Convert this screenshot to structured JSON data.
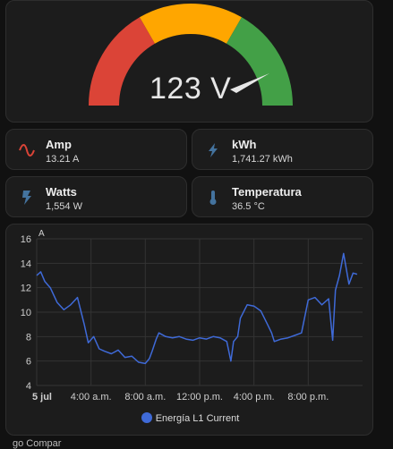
{
  "gauge": {
    "value_text": "123 V",
    "value": 123,
    "colors": {
      "red": "#db4437",
      "yellow": "#ffa600",
      "green": "#43a047",
      "needle": "#e6e6e6"
    }
  },
  "tiles": {
    "amp": {
      "name": "Amp",
      "state": "13.21 A",
      "icon": "sine-wave-icon",
      "icon_color": "#db4437"
    },
    "kwh": {
      "name": "kWh",
      "state": "1,741.27 kWh",
      "icon": "lightning-bolt-icon",
      "icon_color": "#44739e"
    },
    "watt": {
      "name": "Watts",
      "state": "1,554 W",
      "icon": "flash-icon",
      "icon_color": "#44739e"
    },
    "temp": {
      "name": "Temperatura",
      "state": "36.5 °C",
      "icon": "thermometer-icon",
      "icon_color": "#44739e"
    }
  },
  "chart_data": {
    "type": "line",
    "unit_label": "A",
    "y_ticks": [
      4,
      6,
      8,
      10,
      12,
      14,
      16
    ],
    "ylim": [
      4,
      16
    ],
    "x_ticks": [
      "5 jul",
      "4:00 a.m.",
      "8:00 a.m.",
      "12:00 p.m.",
      "4:00 p.m.",
      "8:00 p.m."
    ],
    "x_hours": [
      0,
      4,
      8,
      12,
      16,
      20
    ],
    "xlim": [
      0,
      24
    ],
    "grid": true,
    "legend_position": "bottom",
    "series": [
      {
        "name": "Energía L1 Current",
        "color": "#3f6ad8",
        "x": [
          0,
          0.3,
          0.6,
          1.0,
          1.5,
          2.0,
          2.5,
          3.0,
          3.5,
          3.8,
          4.2,
          4.6,
          5.0,
          5.5,
          6.0,
          6.5,
          7.0,
          7.5,
          8.0,
          8.3,
          8.5,
          8.8,
          9.0,
          9.5,
          10.0,
          10.5,
          11.0,
          11.5,
          12.0,
          12.5,
          13.0,
          13.5,
          14.0,
          14.3,
          14.5,
          14.8,
          15.0,
          15.5,
          16.0,
          16.5,
          17.0,
          17.3,
          17.5,
          18.0,
          18.5,
          19.0,
          19.5,
          20.0,
          20.5,
          21.0,
          21.5,
          21.8,
          22.0,
          22.3,
          22.6,
          23.0,
          23.3,
          23.6
        ],
        "y": [
          13.0,
          13.3,
          12.5,
          12.0,
          10.8,
          10.2,
          10.6,
          11.2,
          9.0,
          7.5,
          8.0,
          7.0,
          6.8,
          6.6,
          6.9,
          6.3,
          6.4,
          5.9,
          5.8,
          6.2,
          6.8,
          7.8,
          8.3,
          8.0,
          7.9,
          8.0,
          7.8,
          7.7,
          7.9,
          7.8,
          8.0,
          7.9,
          7.6,
          6.0,
          7.6,
          8.0,
          9.5,
          10.6,
          10.5,
          10.1,
          9.0,
          8.3,
          7.6,
          7.8,
          7.9,
          8.1,
          8.3,
          11.0,
          11.2,
          10.6,
          11.1,
          7.7,
          11.8,
          13.0,
          14.8,
          12.3,
          13.2,
          13.1
        ]
      }
    ]
  },
  "footer": {
    "text": "go Compar"
  }
}
